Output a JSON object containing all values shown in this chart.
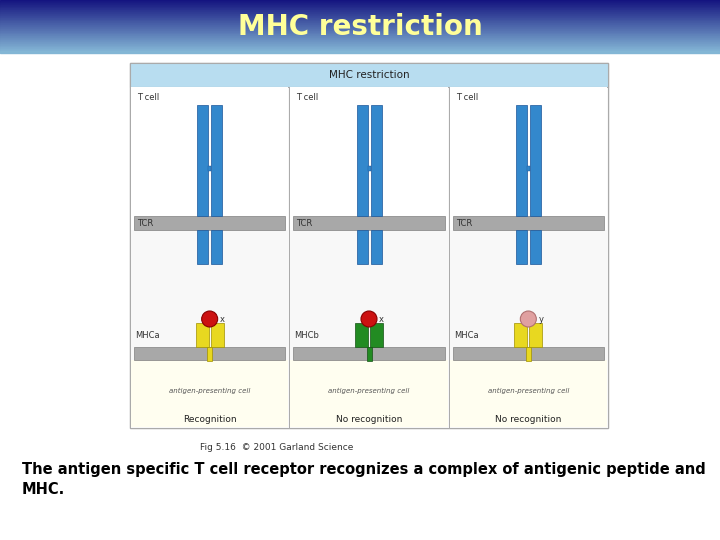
{
  "title": "MHC restriction",
  "title_color": "#FFFF99",
  "title_bg_top": "#1a1a8c",
  "title_bg_bottom": "#8ab8d0",
  "body_bg": "#ffffff",
  "caption": "Fig 5.16  © 2001 Garland Science",
  "body_text_line1": "The antigen specific T cell receptor recognizes a complex of antigenic peptide and",
  "body_text_line2": "MHC.",
  "diagram_title": "MHC restriction",
  "tcr_blue": "#3388cc",
  "tcr_blue_dark": "#1a5599",
  "mhc_yellow": "#e8d820",
  "mhc_yellow_edge": "#a09000",
  "mhc_green": "#228B22",
  "mhc_green_edge": "#145214",
  "peptide_red": "#cc1111",
  "peptide_pink": "#e0a0a0",
  "mem_color": "#a8a8a8",
  "apc_bg": "#fffef0",
  "panels": [
    {
      "label": "Recognition",
      "tcell": "T cell",
      "mhc_label": "MHCa",
      "tcr_label": "TCR",
      "mhc_key": "yellow",
      "peptide_key": "red",
      "peptide_label": "x",
      "connected": true
    },
    {
      "label": "No recognition",
      "tcell": "T cell",
      "mhc_label": "MHCb",
      "tcr_label": "TCR",
      "mhc_key": "green",
      "peptide_key": "red",
      "peptide_label": "x",
      "connected": false
    },
    {
      "label": "No recognition",
      "tcell": "T cell",
      "mhc_label": "MHCa",
      "tcr_label": "TCR",
      "mhc_key": "yellow",
      "peptide_key": "pink",
      "peptide_label": "y",
      "connected": false
    }
  ]
}
